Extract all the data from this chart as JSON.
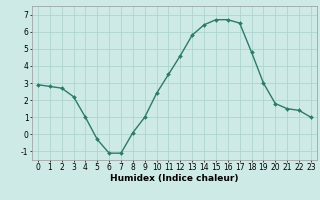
{
  "x": [
    0,
    1,
    2,
    3,
    4,
    5,
    6,
    7,
    8,
    9,
    10,
    11,
    12,
    13,
    14,
    15,
    16,
    17,
    18,
    19,
    20,
    21,
    22,
    23
  ],
  "y": [
    2.9,
    2.8,
    2.7,
    2.2,
    1.0,
    -0.3,
    -1.1,
    -1.1,
    0.1,
    1.0,
    2.4,
    3.5,
    4.6,
    5.8,
    6.4,
    6.7,
    6.7,
    6.5,
    4.8,
    3.0,
    1.8,
    1.5,
    1.4,
    1.0
  ],
  "line_color": "#2d7a68",
  "marker": "D",
  "marker_size": 2.0,
  "xlabel": "Humidex (Indice chaleur)",
  "background_color": "#ceeae7",
  "grid_color": "#aed4cf",
  "ylim": [
    -1.5,
    7.5
  ],
  "xlim": [
    -0.5,
    23.5
  ],
  "yticks": [
    -1,
    0,
    1,
    2,
    3,
    4,
    5,
    6,
    7
  ],
  "xticks": [
    0,
    1,
    2,
    3,
    4,
    5,
    6,
    7,
    8,
    9,
    10,
    11,
    12,
    13,
    14,
    15,
    16,
    17,
    18,
    19,
    20,
    21,
    22,
    23
  ],
  "tick_fontsize": 5.5,
  "xlabel_fontsize": 6.5,
  "line_width": 1.0
}
